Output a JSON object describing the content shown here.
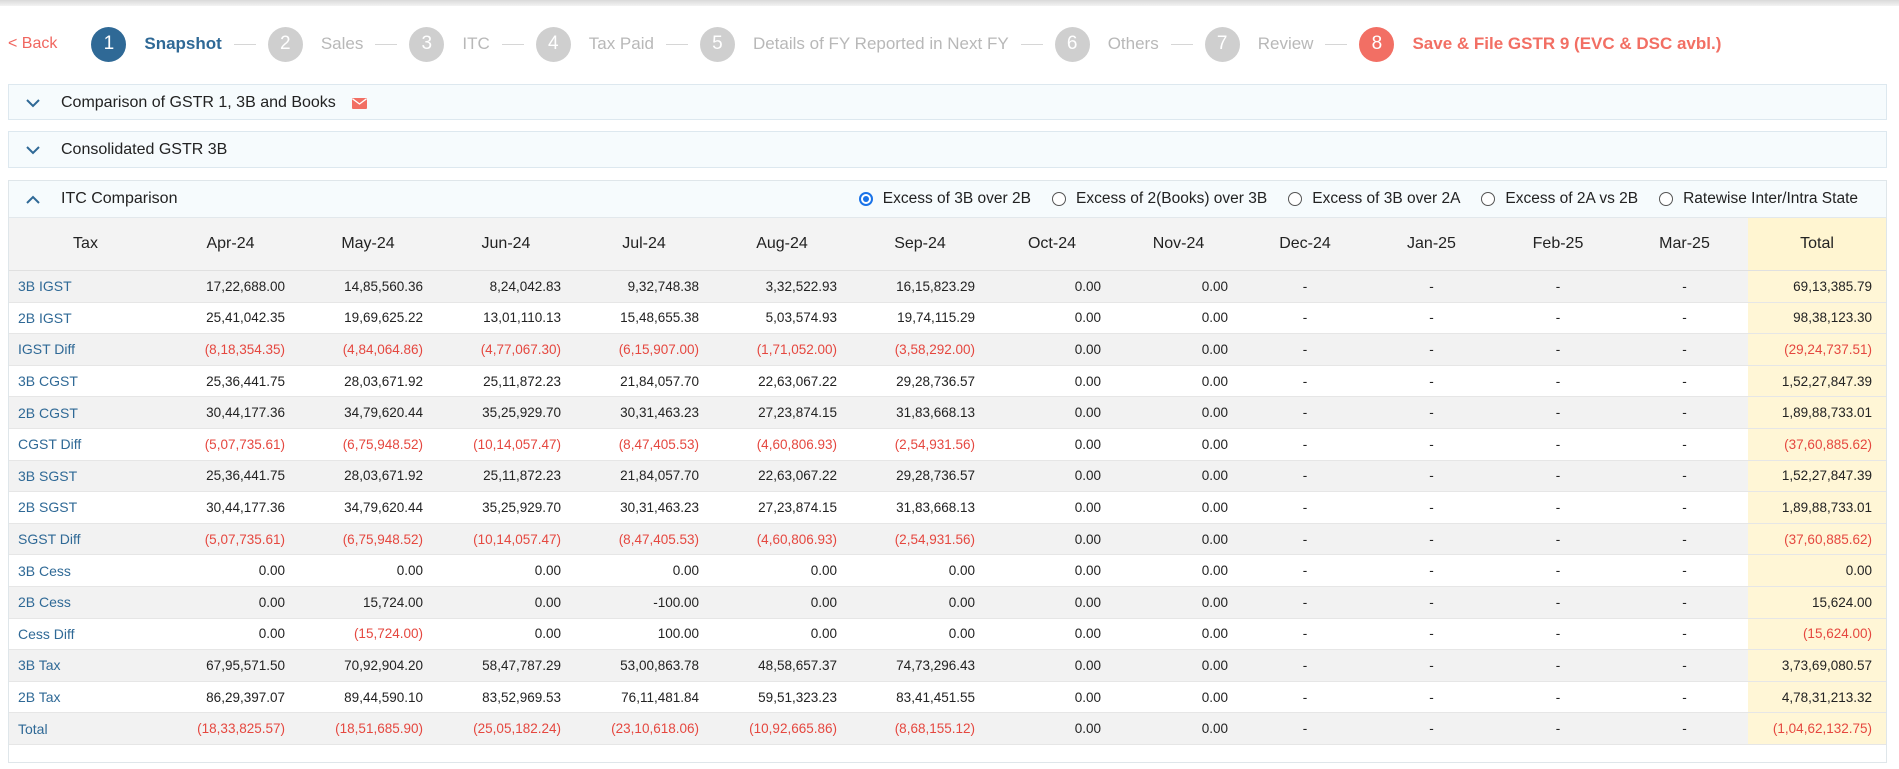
{
  "nav": {
    "back_label": "< Back"
  },
  "steps": [
    {
      "num": "1",
      "label": "Snapshot",
      "state": "active"
    },
    {
      "num": "2",
      "label": "Sales",
      "state": ""
    },
    {
      "num": "3",
      "label": "ITC",
      "state": ""
    },
    {
      "num": "4",
      "label": "Tax Paid",
      "state": ""
    },
    {
      "num": "5",
      "label": "Details of FY Reported in Next FY",
      "state": ""
    },
    {
      "num": "6",
      "label": "Others",
      "state": ""
    },
    {
      "num": "7",
      "label": "Review",
      "state": ""
    },
    {
      "num": "8",
      "label": "Save & File GSTR 9 (EVC & DSC avbl.)",
      "state": "last"
    }
  ],
  "panels": {
    "comparison": {
      "title": "Comparison of GSTR 1, 3B and Books"
    },
    "consolidated": {
      "title": "Consolidated GSTR 3B"
    },
    "itc": {
      "title": "ITC Comparison",
      "options": [
        {
          "label": "Excess of 3B over 2B",
          "checked": true
        },
        {
          "label": "Excess of 2(Books) over 3B",
          "checked": false
        },
        {
          "label": "Excess of 3B over 2A",
          "checked": false
        },
        {
          "label": "Excess of 2A vs 2B",
          "checked": false
        },
        {
          "label": "Ratewise Inter/Intra State",
          "checked": false
        }
      ]
    }
  },
  "colors": {
    "accent": "#2f6996",
    "brand_red": "#f26f64",
    "negative": "#e5473f",
    "total_bg": "#fff6d6"
  },
  "table": {
    "headers": [
      "Tax",
      "Apr-24",
      "May-24",
      "Jun-24",
      "Jul-24",
      "Aug-24",
      "Sep-24",
      "Oct-24",
      "Nov-24",
      "Dec-24",
      "Jan-25",
      "Feb-25",
      "Mar-25",
      "Total"
    ],
    "rows": [
      {
        "label": "3B IGST",
        "values": [
          "17,22,688.00",
          "14,85,560.36",
          "8,24,042.83",
          "9,32,748.38",
          "3,32,522.93",
          "16,15,823.29",
          "0.00",
          "0.00",
          "-",
          "-",
          "-",
          "-",
          "69,13,385.79"
        ]
      },
      {
        "label": "2B IGST",
        "values": [
          "25,41,042.35",
          "19,69,625.22",
          "13,01,110.13",
          "15,48,655.38",
          "5,03,574.93",
          "19,74,115.29",
          "0.00",
          "0.00",
          "-",
          "-",
          "-",
          "-",
          "98,38,123.30"
        ]
      },
      {
        "label": "IGST Diff",
        "values": [
          "(8,18,354.35)",
          "(4,84,064.86)",
          "(4,77,067.30)",
          "(6,15,907.00)",
          "(1,71,052.00)",
          "(3,58,292.00)",
          "0.00",
          "0.00",
          "-",
          "-",
          "-",
          "-",
          "(29,24,737.51)"
        ]
      },
      {
        "label": "3B CGST",
        "values": [
          "25,36,441.75",
          "28,03,671.92",
          "25,11,872.23",
          "21,84,057.70",
          "22,63,067.22",
          "29,28,736.57",
          "0.00",
          "0.00",
          "-",
          "-",
          "-",
          "-",
          "1,52,27,847.39"
        ]
      },
      {
        "label": "2B CGST",
        "values": [
          "30,44,177.36",
          "34,79,620.44",
          "35,25,929.70",
          "30,31,463.23",
          "27,23,874.15",
          "31,83,668.13",
          "0.00",
          "0.00",
          "-",
          "-",
          "-",
          "-",
          "1,89,88,733.01"
        ]
      },
      {
        "label": "CGST Diff",
        "values": [
          "(5,07,735.61)",
          "(6,75,948.52)",
          "(10,14,057.47)",
          "(8,47,405.53)",
          "(4,60,806.93)",
          "(2,54,931.56)",
          "0.00",
          "0.00",
          "-",
          "-",
          "-",
          "-",
          "(37,60,885.62)"
        ]
      },
      {
        "label": "3B SGST",
        "values": [
          "25,36,441.75",
          "28,03,671.92",
          "25,11,872.23",
          "21,84,057.70",
          "22,63,067.22",
          "29,28,736.57",
          "0.00",
          "0.00",
          "-",
          "-",
          "-",
          "-",
          "1,52,27,847.39"
        ]
      },
      {
        "label": "2B SGST",
        "values": [
          "30,44,177.36",
          "34,79,620.44",
          "35,25,929.70",
          "30,31,463.23",
          "27,23,874.15",
          "31,83,668.13",
          "0.00",
          "0.00",
          "-",
          "-",
          "-",
          "-",
          "1,89,88,733.01"
        ]
      },
      {
        "label": "SGST Diff",
        "values": [
          "(5,07,735.61)",
          "(6,75,948.52)",
          "(10,14,057.47)",
          "(8,47,405.53)",
          "(4,60,806.93)",
          "(2,54,931.56)",
          "0.00",
          "0.00",
          "-",
          "-",
          "-",
          "-",
          "(37,60,885.62)"
        ]
      },
      {
        "label": "3B Cess",
        "values": [
          "0.00",
          "0.00",
          "0.00",
          "0.00",
          "0.00",
          "0.00",
          "0.00",
          "0.00",
          "-",
          "-",
          "-",
          "-",
          "0.00"
        ]
      },
      {
        "label": "2B Cess",
        "values": [
          "0.00",
          "15,724.00",
          "0.00",
          "-100.00",
          "0.00",
          "0.00",
          "0.00",
          "0.00",
          "-",
          "-",
          "-",
          "-",
          "15,624.00"
        ]
      },
      {
        "label": "Cess Diff",
        "values": [
          "0.00",
          "(15,724.00)",
          "0.00",
          "100.00",
          "0.00",
          "0.00",
          "0.00",
          "0.00",
          "-",
          "-",
          "-",
          "-",
          "(15,624.00)"
        ]
      },
      {
        "label": "3B Tax",
        "values": [
          "67,95,571.50",
          "70,92,904.20",
          "58,47,787.29",
          "53,00,863.78",
          "48,58,657.37",
          "74,73,296.43",
          "0.00",
          "0.00",
          "-",
          "-",
          "-",
          "-",
          "3,73,69,080.57"
        ]
      },
      {
        "label": "2B Tax",
        "values": [
          "86,29,397.07",
          "89,44,590.10",
          "83,52,969.53",
          "76,11,481.84",
          "59,51,323.23",
          "83,41,451.55",
          "0.00",
          "0.00",
          "-",
          "-",
          "-",
          "-",
          "4,78,31,213.32"
        ]
      },
      {
        "label": "Total",
        "values": [
          "(18,33,825.57)",
          "(18,51,685.90)",
          "(25,05,182.24)",
          "(23,10,618.06)",
          "(10,92,665.86)",
          "(8,68,155.12)",
          "0.00",
          "0.00",
          "-",
          "-",
          "-",
          "-",
          "(1,04,62,132.75)"
        ]
      }
    ]
  }
}
